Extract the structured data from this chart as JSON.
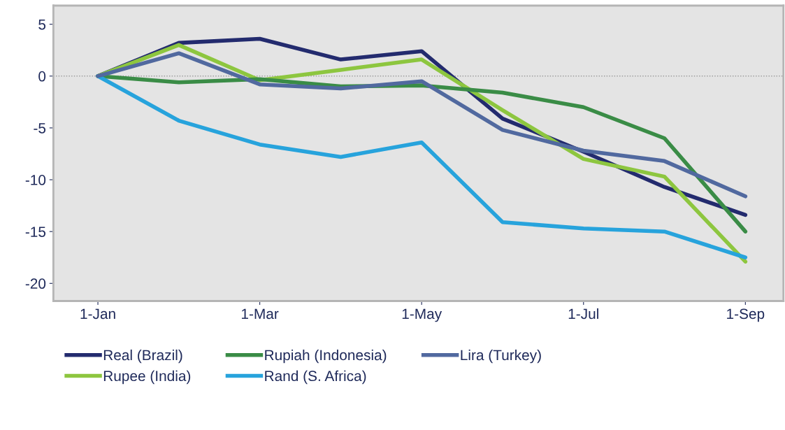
{
  "chart_data": {
    "type": "line",
    "categories": [
      "1-Jan",
      null,
      "1-Mar",
      null,
      "1-May",
      null,
      "1-Jul",
      null,
      "1-Sep"
    ],
    "series": [
      {
        "name": "Real (Brazil)",
        "color": "#232b6e",
        "values": [
          0,
          3.2,
          3.6,
          1.6,
          2.4,
          -4.1,
          -7.3,
          -10.7,
          -13.4
        ]
      },
      {
        "name": "Rupee (India)",
        "color": "#8dc63f",
        "values": [
          0,
          3.0,
          -0.4,
          0.6,
          1.6,
          -3.3,
          -8.0,
          -9.7,
          -17.9
        ]
      },
      {
        "name": "Rupiah (Indonesia)",
        "color": "#3a8c46",
        "values": [
          0,
          -0.6,
          -0.3,
          -1.0,
          -0.9,
          -1.6,
          -3.0,
          -6.0,
          -15.0
        ]
      },
      {
        "name": "Rand (S. Africa)",
        "color": "#27a3dc",
        "values": [
          0,
          -4.3,
          -6.6,
          -7.8,
          -6.4,
          -14.1,
          -14.7,
          -15.0,
          -17.5
        ]
      },
      {
        "name": "Lira (Turkey)",
        "color": "#51699f",
        "values": [
          0,
          2.2,
          -0.8,
          -1.2,
          -0.5,
          -5.2,
          -7.2,
          -8.2,
          -11.6
        ]
      }
    ],
    "ylim": [
      -21.7,
      6.8
    ],
    "yticks": [
      5,
      0,
      -5,
      -10,
      -15,
      -20
    ],
    "ref_lines": [
      {
        "axis": "y",
        "value": 0,
        "color": "#9a9a9a",
        "line_style": "dotted"
      }
    ],
    "grid": false,
    "legend": "bottom",
    "marker": "none",
    "line_style": "solid"
  }
}
